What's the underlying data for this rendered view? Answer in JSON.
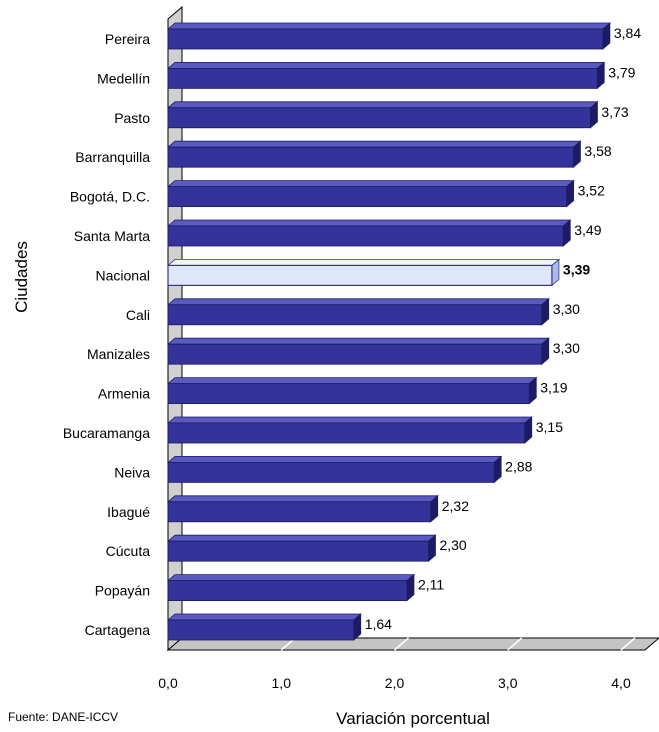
{
  "chart_data": {
    "type": "bar",
    "orientation": "horizontal",
    "categories": [
      "Pereira",
      "Medellín",
      "Pasto",
      "Barranquilla",
      "Bogotá, D.C.",
      "Santa Marta",
      "Nacional",
      "Cali",
      "Manizales",
      "Armenia",
      "Bucaramanga",
      "Neiva",
      "Ibagué",
      "Cúcuta",
      "Popayán",
      "Cartagena"
    ],
    "values": [
      3.84,
      3.79,
      3.73,
      3.58,
      3.52,
      3.49,
      3.39,
      3.3,
      3.3,
      3.19,
      3.15,
      2.88,
      2.32,
      2.3,
      2.11,
      1.64
    ],
    "value_labels": [
      "3,84",
      "3,79",
      "3,73",
      "3,58",
      "3,52",
      "3,49",
      "3,39",
      "3,30",
      "3,30",
      "3,19",
      "3,15",
      "2,88",
      "2,32",
      "2,30",
      "2,11",
      "1,64"
    ],
    "highlight_category": "Nacional",
    "xlabel": "Variación porcentual",
    "ylabel": "Ciudades",
    "xlim": [
      0,
      4
    ],
    "x_ticks": [
      "0,0",
      "1,0",
      "2,0",
      "3,0",
      "4,0"
    ],
    "grid": false
  },
  "source_note": "Fuente: DANE-ICCV",
  "colors": {
    "bar_face": "#333399",
    "bar_top": "#5a5ac0",
    "bar_side": "#1c1c66",
    "highlight_face": "#dfe8f8",
    "highlight_top": "#f2f6fc",
    "highlight_side": "#a9bde0",
    "highlight_edge": "#333399",
    "wall": "#d0d0d0",
    "floor": "#c4c4c4"
  }
}
